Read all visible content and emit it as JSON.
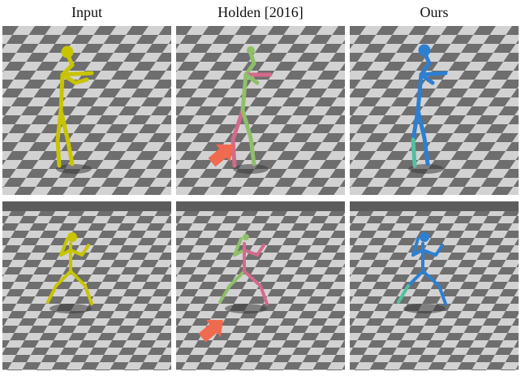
{
  "columns": [
    {
      "title": "Input"
    },
    {
      "title": "Holden [2016]"
    },
    {
      "title": "Ours"
    }
  ],
  "colors": {
    "input_skeleton": "#c8c400",
    "holden_skeleton_a": "#8fbf6a",
    "holden_skeleton_b": "#d46a8a",
    "ours_skeleton": "#2e7fd0",
    "ours_highlight": "#52c0a0",
    "arrow": "#f06a4f",
    "floor_light": "#d2d2d2",
    "floor_dark": "#6e6e6e",
    "sky": "#5c5c5c"
  },
  "rows": [
    {
      "pose": "standing-arm-raised",
      "arrow_in_holden": true
    },
    {
      "pose": "wide-stance-arms-up",
      "arrow_in_holden": true
    }
  ]
}
